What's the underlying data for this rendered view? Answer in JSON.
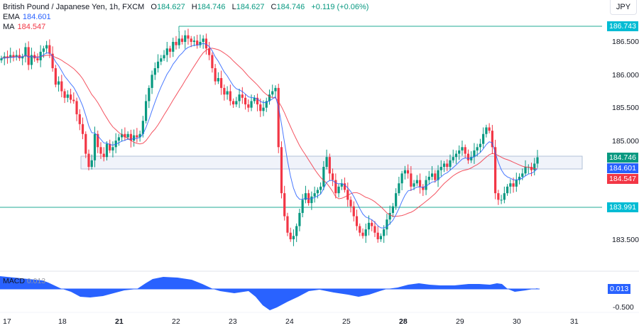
{
  "header": {
    "symbol": "British Pound / Japanese Yen, 1h, FXCM",
    "open_label": "O",
    "open": "184.627",
    "high_label": "H",
    "high": "184.746",
    "low_label": "L",
    "low": "184.627",
    "close_label": "C",
    "close": "184.746",
    "change": "+0.119 (+0.06%)",
    "ema_label": "EMA",
    "ema_value": "184.601",
    "ma_label": "MA",
    "ma_value": "184.547",
    "currency": "JPY"
  },
  "colors": {
    "up": "#089981",
    "down": "#f23645",
    "ema": "#2962ff",
    "ma": "#f23645",
    "hline": "#22ab94",
    "zone_fill": "#f0f3fa",
    "zone_border": "#b2c2d8",
    "macd": "#2962ff"
  },
  "price_axis": {
    "labels": [
      "186.500",
      "186.000",
      "185.500",
      "185.000",
      "183.500"
    ],
    "tags": {
      "resistance": "186.743",
      "support": "183.991",
      "last": "184.746",
      "ema": "184.601",
      "ma": "184.547"
    }
  },
  "macd_pane": {
    "label": "MACD",
    "value_text": "0.013",
    "tag": "0.013",
    "axis_label": "-0.500"
  },
  "x_axis": {
    "labels": [
      {
        "text": "17",
        "bold": false
      },
      {
        "text": "18",
        "bold": false
      },
      {
        "text": "21",
        "bold": true
      },
      {
        "text": "22",
        "bold": false
      },
      {
        "text": "23",
        "bold": false
      },
      {
        "text": "24",
        "bold": false
      },
      {
        "text": "25",
        "bold": false
      },
      {
        "text": "28",
        "bold": true
      },
      {
        "text": "29",
        "bold": false
      },
      {
        "text": "30",
        "bold": false
      },
      {
        "text": "31",
        "bold": false
      }
    ]
  },
  "chart_data": {
    "type": "candlestick",
    "title": "British Pound / Japanese Yen, 1h, FXCM",
    "xlabel": "",
    "ylabel": "JPY",
    "ylim": [
      183.3,
      186.9
    ],
    "x_ticks": [
      "17",
      "18",
      "21",
      "22",
      "23",
      "24",
      "25",
      "28",
      "29",
      "30",
      "31"
    ],
    "y_ticks": [
      183.5,
      184.0,
      185.0,
      185.5,
      186.0,
      186.5
    ],
    "horizontal_lines": [
      186.743,
      183.991
    ],
    "zone": {
      "from": 184.55,
      "to": 184.75
    },
    "last": {
      "open": 184.627,
      "high": 184.746,
      "low": 184.627,
      "close": 184.746,
      "change": 0.119,
      "change_pct": 0.06
    },
    "indicators": {
      "EMA": 184.601,
      "MA": 184.547,
      "MACD": 0.013
    },
    "closes": [
      186.25,
      186.28,
      186.26,
      186.3,
      186.27,
      186.3,
      186.25,
      186.28,
      186.42,
      186.15,
      186.3,
      186.25,
      186.22,
      186.35,
      186.4,
      186.45,
      186.32,
      186.1,
      185.85,
      185.9,
      185.75,
      185.65,
      185.7,
      185.62,
      185.6,
      185.4,
      185.25,
      185.1,
      184.8,
      184.6,
      184.7,
      185.1,
      184.9,
      184.8,
      184.75,
      184.95,
      184.85,
      184.9,
      185.0,
      185.05,
      185.1,
      185.05,
      185.1,
      185.0,
      185.08,
      185.05,
      185.1,
      185.3,
      185.6,
      185.8,
      186.0,
      186.1,
      186.2,
      186.25,
      186.3,
      186.4,
      186.35,
      186.5,
      186.45,
      186.55,
      186.5,
      186.6,
      186.55,
      186.5,
      186.52,
      186.45,
      186.5,
      186.55,
      186.4,
      186.3,
      186.1,
      185.9,
      185.95,
      185.8,
      185.7,
      185.75,
      185.6,
      185.55,
      185.6,
      185.7,
      185.65,
      185.55,
      185.5,
      185.6,
      185.65,
      185.55,
      185.45,
      185.5,
      185.6,
      185.7,
      185.75,
      185.8,
      184.9,
      184.2,
      183.85,
      183.6,
      183.5,
      183.55,
      183.7,
      183.9,
      184.1,
      184.2,
      184.05,
      184.15,
      184.2,
      184.25,
      184.3,
      184.6,
      184.75,
      184.5,
      184.4,
      184.2,
      184.3,
      184.35,
      184.25,
      184.1,
      184.0,
      183.85,
      183.7,
      183.6,
      183.55,
      183.65,
      183.75,
      183.7,
      183.6,
      183.5,
      183.55,
      183.65,
      183.8,
      183.9,
      184.0,
      184.2,
      184.35,
      184.5,
      184.55,
      184.5,
      184.3,
      184.35,
      184.4,
      184.3,
      184.25,
      184.4,
      184.45,
      184.5,
      184.4,
      184.55,
      184.6,
      184.65,
      184.6,
      184.7,
      184.75,
      184.8,
      184.85,
      184.9,
      184.8,
      184.7,
      184.75,
      184.85,
      184.9,
      184.95,
      185.1,
      185.2,
      185.15,
      184.9,
      184.2,
      184.1,
      184.1,
      184.2,
      184.3,
      184.35,
      184.3,
      184.4,
      184.45,
      184.5,
      184.6,
      184.6,
      184.55,
      184.65,
      184.746
    ]
  }
}
